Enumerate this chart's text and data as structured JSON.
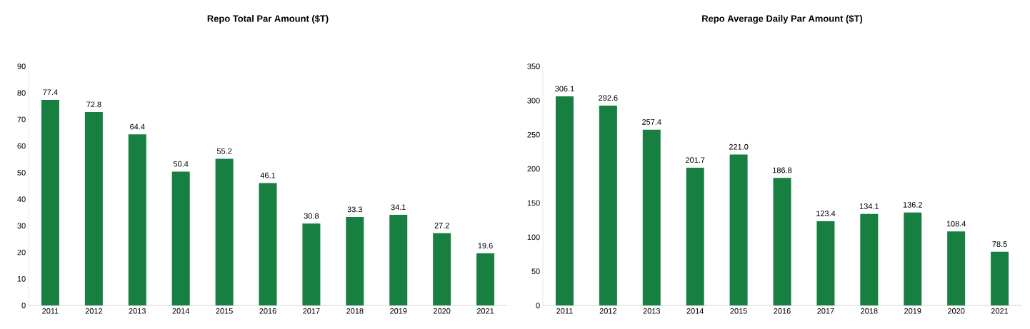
{
  "chart_data": [
    {
      "type": "bar",
      "title": "Repo Total Par Amount ($T)",
      "categories": [
        "2011",
        "2012",
        "2013",
        "2014",
        "2015",
        "2016",
        "2017",
        "2018",
        "2019",
        "2020",
        "2021"
      ],
      "values": [
        77.4,
        72.8,
        64.4,
        50.4,
        55.2,
        46.1,
        30.8,
        33.3,
        34.1,
        27.2,
        19.6
      ],
      "color": "#178040",
      "ylim": [
        0,
        90
      ],
      "yticks": [
        0,
        10,
        20,
        30,
        40,
        50,
        60,
        70,
        80,
        90
      ],
      "data_labels": true,
      "grid": false
    },
    {
      "type": "bar",
      "title": "Repo Average Daily Par Amount ($T)",
      "categories": [
        "2011",
        "2012",
        "2013",
        "2014",
        "2015",
        "2016",
        "2017",
        "2018",
        "2019",
        "2020",
        "2021"
      ],
      "values": [
        306.1,
        292.6,
        257.4,
        201.7,
        221.0,
        186.8,
        123.4,
        134.1,
        136.2,
        108.4,
        78.5
      ],
      "value_labels": [
        "306.1",
        "292.6",
        "257.4",
        "201.7",
        "221.0",
        "186.8",
        "123.4",
        "134.1",
        "136.2",
        "108.4",
        "78.5"
      ],
      "color": "#178040",
      "ylim": [
        0,
        350
      ],
      "yticks": [
        0,
        50,
        100,
        150,
        200,
        250,
        300,
        350
      ],
      "grid": false
    }
  ]
}
